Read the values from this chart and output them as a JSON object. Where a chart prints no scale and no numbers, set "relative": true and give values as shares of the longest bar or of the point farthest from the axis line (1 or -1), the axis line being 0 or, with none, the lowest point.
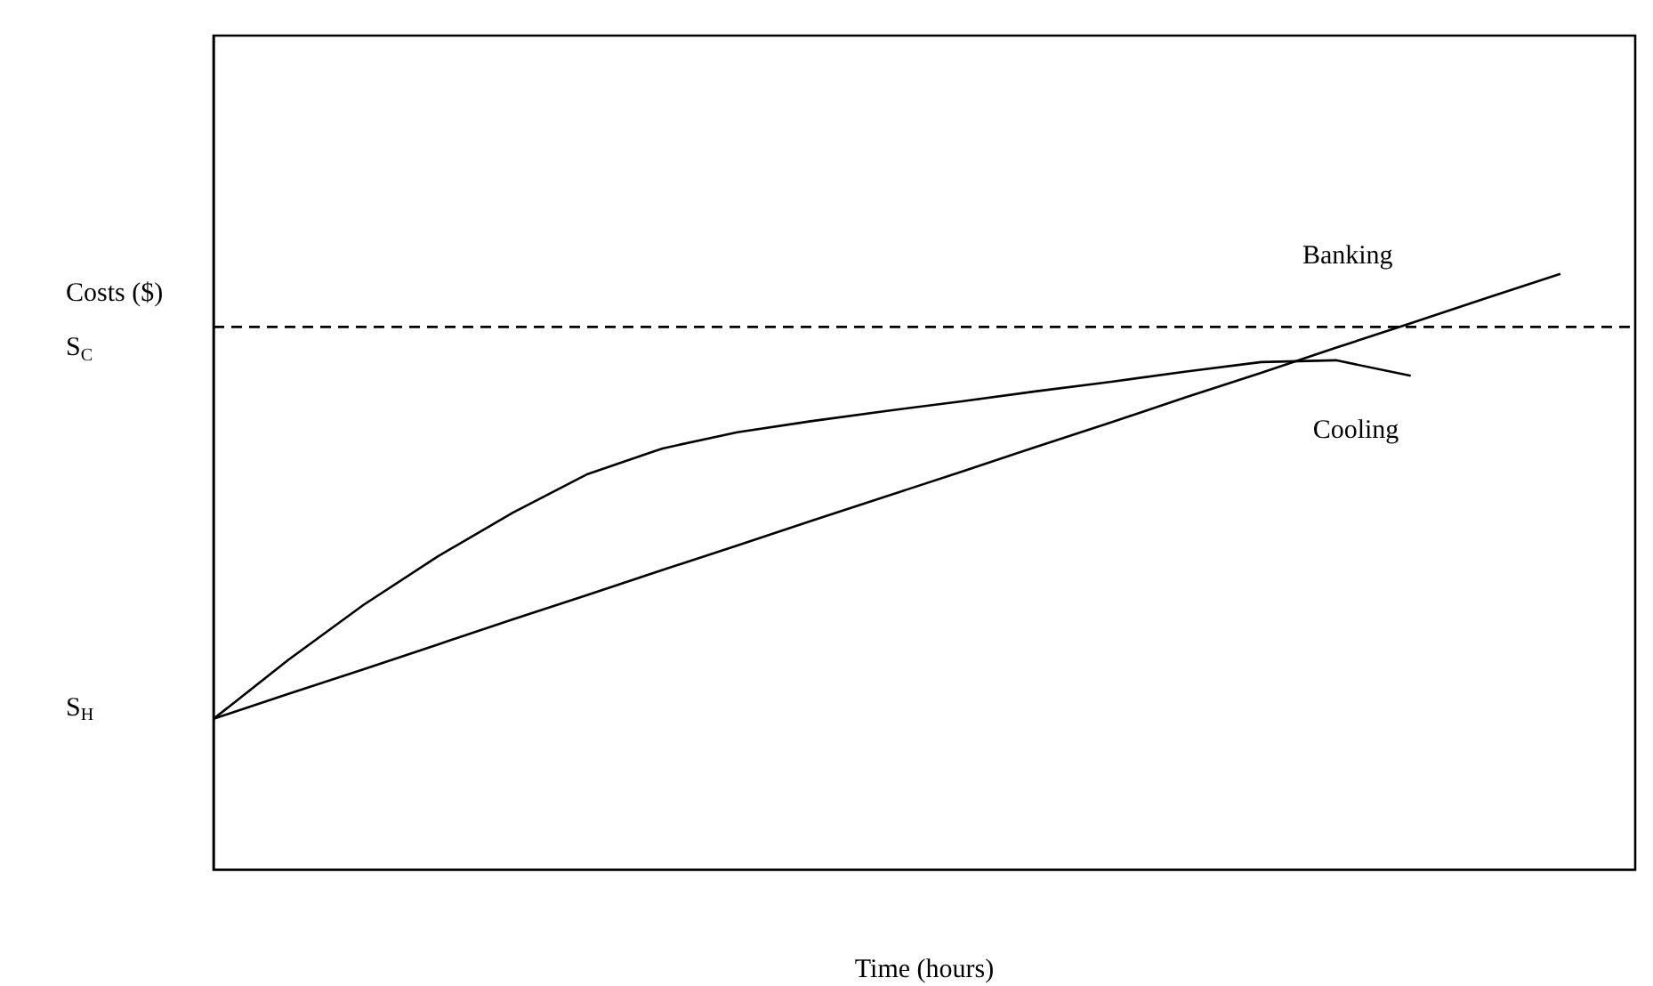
{
  "chart_data": {
    "type": "line",
    "relative": true,
    "xlabel": "Time (hours)",
    "ylabel": "Costs ($)",
    "categories": [
      null,
      null,
      null,
      null,
      null,
      null,
      null,
      null,
      null,
      null,
      null,
      null,
      null,
      null,
      null,
      null,
      null,
      null,
      null,
      null
    ],
    "series": [
      {
        "name": "Banking",
        "color": "#000000",
        "values": [
          0.253,
          0.295,
          0.336,
          0.378,
          0.42,
          0.461,
          0.503,
          0.544,
          0.586,
          0.627,
          0.668,
          0.71,
          0.751,
          0.793,
          0.834,
          0.876,
          0.917,
          0.959,
          1.0,
          null
        ]
      },
      {
        "name": "Cooling",
        "color": "#000000",
        "values": [
          0.253,
          0.352,
          0.444,
          0.526,
          0.599,
          0.664,
          0.707,
          0.734,
          0.753,
          0.77,
          0.786,
          0.803,
          0.819,
          0.836,
          0.852,
          0.855,
          0.829,
          null,
          null,
          null
        ]
      }
    ],
    "ref_lines": [
      {
        "axis": "y",
        "value": 0.911,
        "color": "#000000",
        "line_style": "dashed"
      }
    ],
    "annotations": [
      "S$_{C}$",
      "S$_{H}$"
    ],
    "marker": "none",
    "line_style": "solid",
    "legend": false,
    "grid": false
  }
}
